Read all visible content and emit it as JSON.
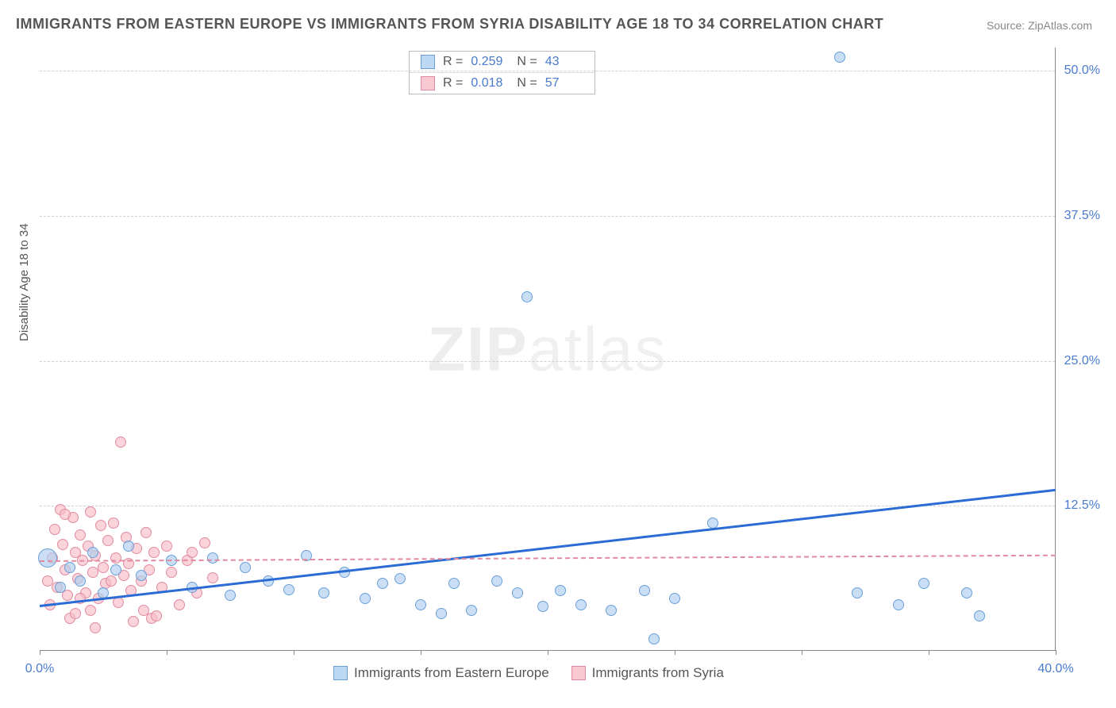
{
  "title": "IMMIGRANTS FROM EASTERN EUROPE VS IMMIGRANTS FROM SYRIA DISABILITY AGE 18 TO 34 CORRELATION CHART",
  "source": "Source: ZipAtlas.com",
  "ylabel": "Disability Age 18 to 34",
  "watermark_a": "ZIP",
  "watermark_b": "atlas",
  "chart": {
    "type": "scatter",
    "xlim": [
      0,
      40
    ],
    "ylim": [
      0,
      52
    ],
    "x_ticks": [
      0,
      5,
      10,
      15,
      20,
      25,
      30,
      35,
      40
    ],
    "x_tick_labels": {
      "0": "0.0%",
      "40": "40.0%"
    },
    "y_ticks": [
      12.5,
      25.0,
      37.5,
      50.0
    ],
    "y_tick_labels": [
      "12.5%",
      "25.0%",
      "37.5%",
      "50.0%"
    ],
    "grid_color": "#d0d0d0",
    "background_color": "#ffffff",
    "series": [
      {
        "name": "Immigrants from Eastern Europe",
        "color_fill": "#adceF0",
        "color_stroke": "#6a9fd8",
        "marker_radius": 7,
        "trend": {
          "x1": 0,
          "y1": 4.0,
          "x2": 40,
          "y2": 14.0,
          "color": "#2b6cd4",
          "width": 3,
          "dash": false
        },
        "R": "0.259",
        "N": "43",
        "points": [
          [
            0.3,
            8.0,
            12
          ],
          [
            0.8,
            5.5,
            7
          ],
          [
            1.2,
            7.2,
            7
          ],
          [
            1.6,
            6.0,
            7
          ],
          [
            2.1,
            8.5,
            7
          ],
          [
            2.5,
            5.0,
            7
          ],
          [
            3.0,
            7.0,
            7
          ],
          [
            3.5,
            9.0,
            7
          ],
          [
            4.0,
            6.5,
            7
          ],
          [
            5.2,
            7.8,
            7
          ],
          [
            6.0,
            5.5,
            7
          ],
          [
            6.8,
            8.0,
            7
          ],
          [
            7.5,
            4.8,
            7
          ],
          [
            8.1,
            7.2,
            7
          ],
          [
            9.0,
            6.0,
            7
          ],
          [
            9.8,
            5.3,
            7
          ],
          [
            10.5,
            8.2,
            7
          ],
          [
            11.2,
            5.0,
            7
          ],
          [
            12.0,
            6.8,
            7
          ],
          [
            12.8,
            4.5,
            7
          ],
          [
            13.5,
            5.8,
            7
          ],
          [
            14.2,
            6.2,
            7
          ],
          [
            15.0,
            4.0,
            7
          ],
          [
            15.8,
            3.2,
            7
          ],
          [
            16.3,
            5.8,
            7
          ],
          [
            17.0,
            3.5,
            7
          ],
          [
            18.0,
            6.0,
            7
          ],
          [
            18.8,
            5.0,
            7
          ],
          [
            19.2,
            30.5,
            7
          ],
          [
            19.8,
            3.8,
            7
          ],
          [
            20.5,
            5.2,
            7
          ],
          [
            21.3,
            4.0,
            7
          ],
          [
            22.5,
            3.5,
            7
          ],
          [
            23.8,
            5.2,
            7
          ],
          [
            24.2,
            1.0,
            7
          ],
          [
            26.5,
            11.0,
            7
          ],
          [
            25.0,
            4.5,
            7
          ],
          [
            32.2,
            5.0,
            7
          ],
          [
            31.5,
            51.2,
            7
          ],
          [
            33.8,
            4.0,
            7
          ],
          [
            34.8,
            5.8,
            7
          ],
          [
            36.5,
            5.0,
            7
          ],
          [
            37.0,
            3.0,
            7
          ]
        ]
      },
      {
        "name": "Immigrants from Syria",
        "color_fill": "#f8bbc8",
        "color_stroke": "#e28a9f",
        "marker_radius": 7,
        "trend": {
          "x1": 0,
          "y1": 7.8,
          "x2": 40,
          "y2": 8.3,
          "color": "#e28a9f",
          "width": 2,
          "dash": true
        },
        "R": "0.018",
        "N": "57",
        "points": [
          [
            0.3,
            6.0,
            7
          ],
          [
            0.5,
            8.0,
            7
          ],
          [
            0.7,
            5.5,
            7
          ],
          [
            0.9,
            9.2,
            7
          ],
          [
            1.0,
            7.0,
            7
          ],
          [
            1.1,
            4.8,
            7
          ],
          [
            1.3,
            11.5,
            7
          ],
          [
            1.4,
            8.5,
            7
          ],
          [
            1.5,
            6.2,
            7
          ],
          [
            1.6,
            10.0,
            7
          ],
          [
            1.7,
            7.8,
            7
          ],
          [
            1.8,
            5.0,
            7
          ],
          [
            1.9,
            9.0,
            7
          ],
          [
            2.0,
            12.0,
            7
          ],
          [
            2.1,
            6.8,
            7
          ],
          [
            2.2,
            8.2,
            7
          ],
          [
            2.3,
            4.5,
            7
          ],
          [
            2.4,
            10.8,
            7
          ],
          [
            2.5,
            7.2,
            7
          ],
          [
            2.6,
            5.8,
            7
          ],
          [
            2.7,
            9.5,
            7
          ],
          [
            2.8,
            6.0,
            7
          ],
          [
            2.9,
            11.0,
            7
          ],
          [
            3.0,
            8.0,
            7
          ],
          [
            3.1,
            4.2,
            7
          ],
          [
            3.2,
            18.0,
            7
          ],
          [
            3.3,
            6.5,
            7
          ],
          [
            3.4,
            9.8,
            7
          ],
          [
            3.5,
            7.5,
            7
          ],
          [
            3.6,
            5.2,
            7
          ],
          [
            3.8,
            8.8,
            7
          ],
          [
            4.0,
            6.0,
            7
          ],
          [
            4.1,
            3.5,
            7
          ],
          [
            4.2,
            10.2,
            7
          ],
          [
            4.3,
            7.0,
            7
          ],
          [
            4.4,
            2.8,
            7
          ],
          [
            4.5,
            8.5,
            7
          ],
          [
            4.8,
            5.5,
            7
          ],
          [
            5.0,
            9.0,
            7
          ],
          [
            5.2,
            6.8,
            7
          ],
          [
            5.5,
            4.0,
            7
          ],
          [
            5.8,
            7.8,
            7
          ],
          [
            6.0,
            8.5,
            7
          ],
          [
            6.2,
            5.0,
            7
          ],
          [
            6.5,
            9.3,
            7
          ],
          [
            6.8,
            6.3,
            7
          ],
          [
            4.6,
            3.0,
            7
          ],
          [
            3.7,
            2.5,
            7
          ],
          [
            2.0,
            3.5,
            7
          ],
          [
            1.2,
            2.8,
            7
          ],
          [
            0.6,
            10.5,
            7
          ],
          [
            0.8,
            12.2,
            7
          ],
          [
            1.4,
            3.2,
            7
          ],
          [
            2.2,
            2.0,
            7
          ],
          [
            0.4,
            4.0,
            7
          ],
          [
            1.0,
            11.8,
            7
          ],
          [
            1.6,
            4.5,
            7
          ]
        ]
      }
    ]
  },
  "legend_stats_labels": {
    "R": "R =",
    "N": "N ="
  }
}
